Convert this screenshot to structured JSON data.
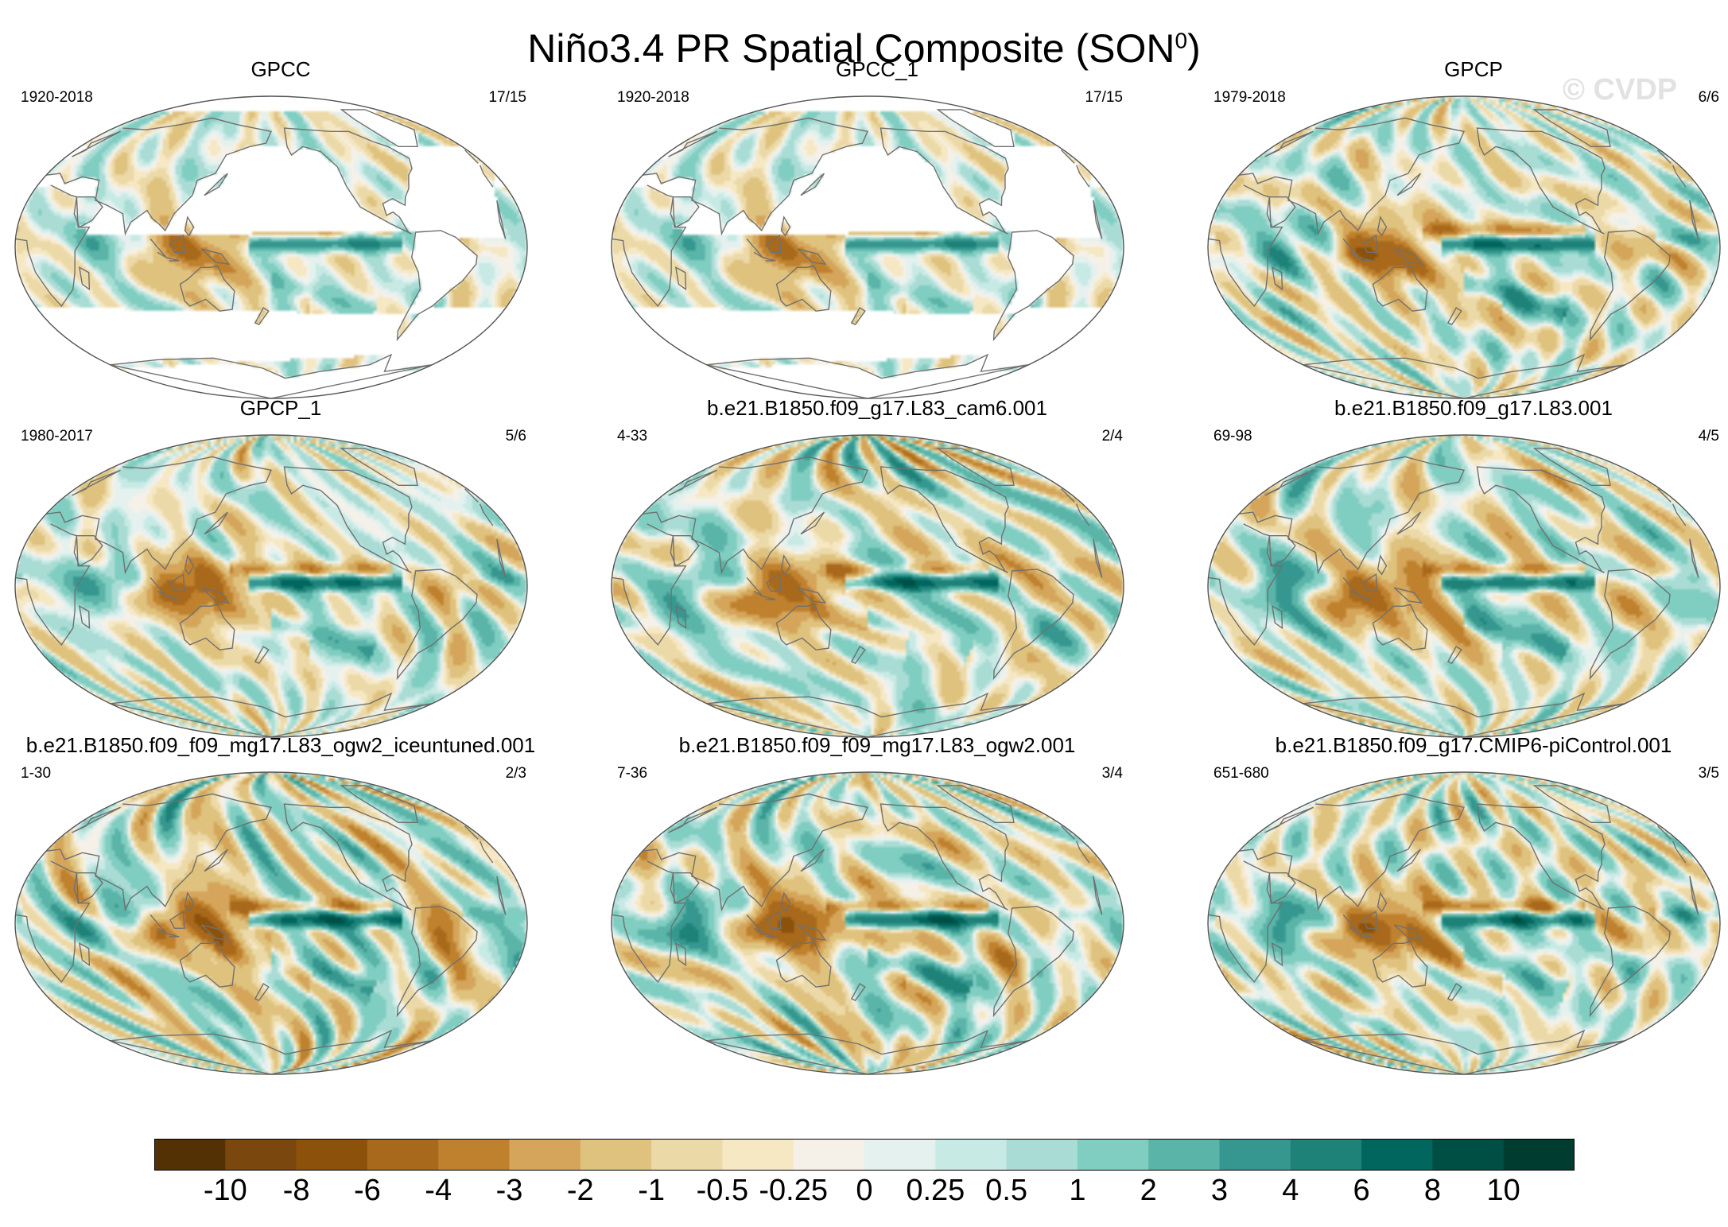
{
  "title": "Niño3.4 PR Spatial Composite (SON",
  "title_sup": "0",
  "title_close": ")",
  "watermark": "© CVDP",
  "colors": {
    "ocean_bg": "#f4efe6",
    "coast": "#707070",
    "frame": "#555555",
    "scale": [
      "#543005",
      "#7a480f",
      "#8c510a",
      "#a8691c",
      "#bf812d",
      "#d4a55a",
      "#dfc27d",
      "#ecd9a8",
      "#f6e8c3",
      "#f5f1e9",
      "#e4f1ef",
      "#c7eae5",
      "#a9dcd4",
      "#80cdc1",
      "#5ab4a8",
      "#35978f",
      "#1e8278",
      "#01665e",
      "#004f44",
      "#003c30"
    ]
  },
  "panels": [
    {
      "title": "GPCC",
      "period": "1920-2018",
      "count": "17/15",
      "kind": "land",
      "pattern": 0
    },
    {
      "title": "GPCC_1",
      "period": "1920-2018",
      "count": "17/15",
      "kind": "land",
      "pattern": 1
    },
    {
      "title": "GPCP",
      "period": "1979-2018",
      "count": "6/6",
      "kind": "full",
      "pattern": 2
    },
    {
      "title": "GPCP_1",
      "period": "1980-2017",
      "count": "5/6",
      "kind": "full",
      "pattern": 3
    },
    {
      "title": "b.e21.B1850.f09_g17.L83_cam6.001",
      "period": "4-33",
      "count": "2/4",
      "kind": "full",
      "pattern": 4
    },
    {
      "title": "b.e21.B1850.f09_g17.L83.001",
      "period": "69-98",
      "count": "4/5",
      "kind": "full",
      "pattern": 5
    },
    {
      "title": "b.e21.B1850.f09_f09_mg17.L83_ogw2_iceuntuned.001",
      "period": "1-30",
      "count": "2/3",
      "kind": "full",
      "pattern": 6
    },
    {
      "title": "b.e21.B1850.f09_f09_mg17.L83_ogw2.001",
      "period": "7-36",
      "count": "3/4",
      "kind": "full",
      "pattern": 7
    },
    {
      "title": "b.e21.B1850.f09_g17.CMIP6-piControl.001",
      "period": "651-680",
      "count": "3/5",
      "kind": "full",
      "pattern": 8
    }
  ],
  "colorbar": {
    "labels": [
      "-10",
      "-8",
      "-6",
      "-4",
      "-3",
      "-2",
      "-1",
      "-0.5",
      "-0.25",
      "0",
      "0.25",
      "0.5",
      "1",
      "2",
      "3",
      "4",
      "6",
      "8",
      "10"
    ]
  }
}
